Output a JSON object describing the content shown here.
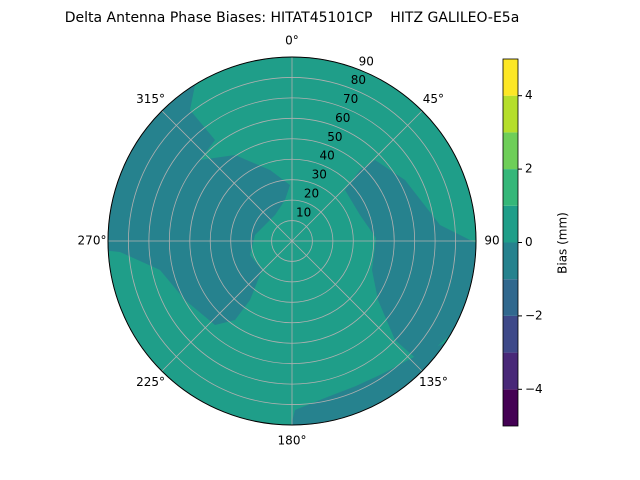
{
  "chart_data": {
    "type": "polar-contour",
    "title": "Delta Antenna Phase Biases: HITAT45101CP    HITZ GALILEO-E5a",
    "rlim": [
      0,
      90
    ],
    "rticks": [
      10,
      20,
      30,
      40,
      50,
      60,
      70,
      80,
      90
    ],
    "thetaticks": [
      {
        "value": 0,
        "label": "0°"
      },
      {
        "value": 45,
        "label": "45°"
      },
      90,
      {
        "value": 135,
        "label": "135°"
      },
      {
        "value": 180,
        "label": "180°"
      },
      {
        "value": 225,
        "label": "225°"
      },
      {
        "value": 270,
        "label": "270°"
      },
      {
        "value": 315,
        "label": "315°"
      }
    ],
    "theta_direction": "clockwise",
    "theta_zero": "top",
    "grid": true,
    "levels": [
      -5,
      -4,
      -3,
      -2,
      -1,
      0,
      1,
      2,
      3,
      4,
      5
    ],
    "colors": [
      "#440154",
      "#482878",
      "#3e4989",
      "#31688e",
      "#26828e",
      "#1f9e89",
      "#35b779",
      "#6ece58",
      "#b5de2b",
      "#fde725"
    ],
    "colorbar_label": "Bias (mm)",
    "cticks": [
      {
        "value": -4,
        "label": "−4"
      },
      {
        "value": -2,
        "label": "−2"
      },
      0,
      2,
      4
    ]
  }
}
